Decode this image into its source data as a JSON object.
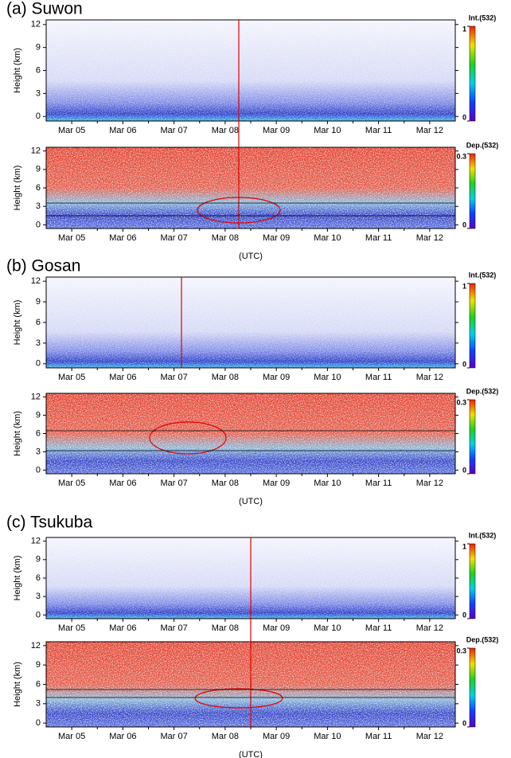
{
  "chart_data": [
    {
      "type": "heatmap",
      "title": "(a) Suwon",
      "ylabel": "Height (km)",
      "categories": [
        "Mar 05",
        "Mar 06",
        "Mar 07",
        "Mar 08",
        "Mar 09",
        "Mar 10",
        "Mar 11",
        "Mar 12"
      ],
      "ylim": [
        -0.6,
        12.6
      ],
      "yticks": [
        0,
        3,
        6,
        9,
        12
      ],
      "colorbar_label": "Int.(532)",
      "clim": [
        0,
        1
      ],
      "cticks": [
        0,
        1
      ]
    },
    {
      "type": "heatmap",
      "ylabel": "Height (km)",
      "categories": [
        "Mar 05",
        "Mar 06",
        "Mar 07",
        "Mar 08",
        "Mar 09",
        "Mar 10",
        "Mar 11",
        "Mar 12"
      ],
      "xlabel": "(UTC)",
      "ylim": [
        -0.6,
        12.6
      ],
      "yticks": [
        0,
        3,
        6,
        9,
        12
      ],
      "colorbar_label": "Dep.(532)",
      "clim": [
        0,
        0.3
      ],
      "cticks": [
        0,
        0.3
      ]
    },
    {
      "type": "heatmap",
      "title": "(b) Gosan",
      "ylabel": "Height (km)",
      "categories": [
        "Mar 05",
        "Mar 06",
        "Mar 07",
        "Mar 08",
        "Mar 09",
        "Mar 10",
        "Mar 11",
        "Mar 12"
      ],
      "ylim": [
        -0.6,
        12.6
      ],
      "yticks": [
        0,
        3,
        6,
        9,
        12
      ],
      "colorbar_label": "Int.(532)",
      "clim": [
        0,
        1
      ],
      "cticks": [
        0,
        1
      ]
    },
    {
      "type": "heatmap",
      "ylabel": "Height (km)",
      "categories": [
        "Mar 05",
        "Mar 06",
        "Mar 07",
        "Mar 08",
        "Mar 09",
        "Mar 10",
        "Mar 11",
        "Mar 12"
      ],
      "xlabel": "(UTC)",
      "ylim": [
        -0.6,
        12.6
      ],
      "yticks": [
        0,
        3,
        6,
        9,
        12
      ],
      "colorbar_label": "Dep.(532)",
      "clim": [
        0,
        0.3
      ],
      "cticks": [
        0,
        0.3
      ]
    },
    {
      "type": "heatmap",
      "title": "(c) Tsukuba",
      "ylabel": "Height (km)",
      "categories": [
        "Mar 05",
        "Mar 06",
        "Mar 07",
        "Mar 08",
        "Mar 09",
        "Mar 10",
        "Mar 11",
        "Mar 12"
      ],
      "ylim": [
        -0.6,
        12.6
      ],
      "yticks": [
        0,
        3,
        6,
        9,
        12
      ],
      "colorbar_label": "Int.(532)",
      "clim": [
        0,
        1
      ],
      "cticks": [
        0,
        1
      ]
    },
    {
      "type": "heatmap",
      "ylabel": "Height (km)",
      "categories": [
        "Mar 05",
        "Mar 06",
        "Mar 07",
        "Mar 08",
        "Mar 09",
        "Mar 10",
        "Mar 11",
        "Mar 12"
      ],
      "xlabel": "(UTC)",
      "ylim": [
        -0.6,
        12.6
      ],
      "yticks": [
        0,
        3,
        6,
        9,
        12
      ],
      "colorbar_label": "Dep.(532)",
      "clim": [
        0,
        0.3
      ],
      "cticks": [
        0,
        0.3
      ]
    }
  ]
}
